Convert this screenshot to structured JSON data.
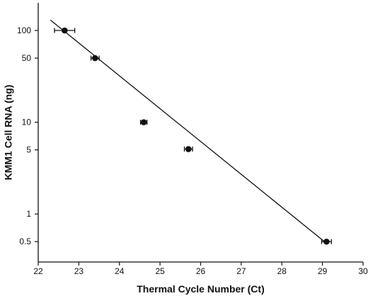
{
  "chart_data": {
    "type": "scatter",
    "title": "",
    "xlabel": "Thermal Cycle Number (Ct)",
    "ylabel": "KMM1 Cell RNA (ng)",
    "xlim": [
      22,
      30
    ],
    "ylim": [
      0.3,
      200
    ],
    "yscale": "log",
    "x_ticks": [
      22,
      23,
      24,
      25,
      26,
      27,
      28,
      29,
      30
    ],
    "y_ticks": [
      0.5,
      1,
      5,
      10,
      50,
      100
    ],
    "y_tick_labels": [
      "0.5",
      "1",
      "5",
      "10",
      "50",
      "100"
    ],
    "grid": false,
    "series": [
      {
        "points": [
          {
            "x": 22.65,
            "y": 100,
            "x_err": 0.25
          },
          {
            "x": 23.4,
            "y": 50,
            "x_err": 0.1
          },
          {
            "x": 24.6,
            "y": 10,
            "x_err": 0.08
          },
          {
            "x": 25.7,
            "y": 5.1,
            "x_err": 0.1
          },
          {
            "x": 29.1,
            "y": 0.5,
            "x_err": 0.12
          }
        ]
      }
    ],
    "fit_line": {
      "x": [
        22.3,
        29.05
      ],
      "y": [
        130,
        0.5
      ]
    }
  }
}
